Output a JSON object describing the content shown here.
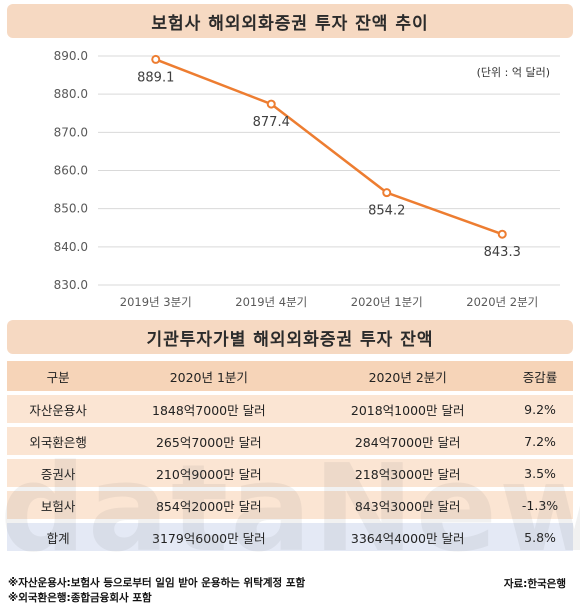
{
  "chart_title": "보험사 해외외화증권 투자 잔액 추이",
  "unit_note": "(단위 : 억 달러)",
  "chart_data": {
    "type": "line",
    "categories": [
      "2019년 3분기",
      "2019년 4분기",
      "2020년 1분기",
      "2020년 2분기"
    ],
    "values": [
      889.1,
      877.4,
      854.2,
      843.3
    ],
    "data_labels": [
      "889.1",
      "877.4",
      "854.2",
      "843.3"
    ],
    "yticks": [
      "890.0",
      "880.0",
      "870.0",
      "860.0",
      "850.0",
      "840.0",
      "830.0"
    ],
    "ylim": [
      830,
      890
    ],
    "color": "#ed7d31",
    "grid": true
  },
  "table_title": "기관투자가별 해외외화증권 투자 잔액",
  "table": {
    "headers": [
      "구분",
      "2020년 1분기",
      "2020년 2분기",
      "증감률"
    ],
    "rows": [
      [
        "자산운용사",
        "1848억7000만 달러",
        "2018억1000만 달러",
        "9.2%"
      ],
      [
        "외국환은행",
        "265억7000만 달러",
        "284억7000만 달러",
        "7.2%"
      ],
      [
        "증권사",
        "210억9000만 달러",
        "218억3000만 달러",
        "3.5%"
      ],
      [
        "보험사",
        "854억2000만 달러",
        "843억3000만 달러",
        "-1.3%"
      ]
    ],
    "total": [
      "합계",
      "3179억6000만 달러",
      "3364억4000만 달러",
      "5.8%"
    ]
  },
  "footnotes": [
    "※자산운용사:보험사 등으로부터 일임 받아 운용하는 위탁계정 포함",
    "※외국환은행:종합금융회사 포함"
  ],
  "source": "자료:한국은행",
  "watermark": "dataNews"
}
